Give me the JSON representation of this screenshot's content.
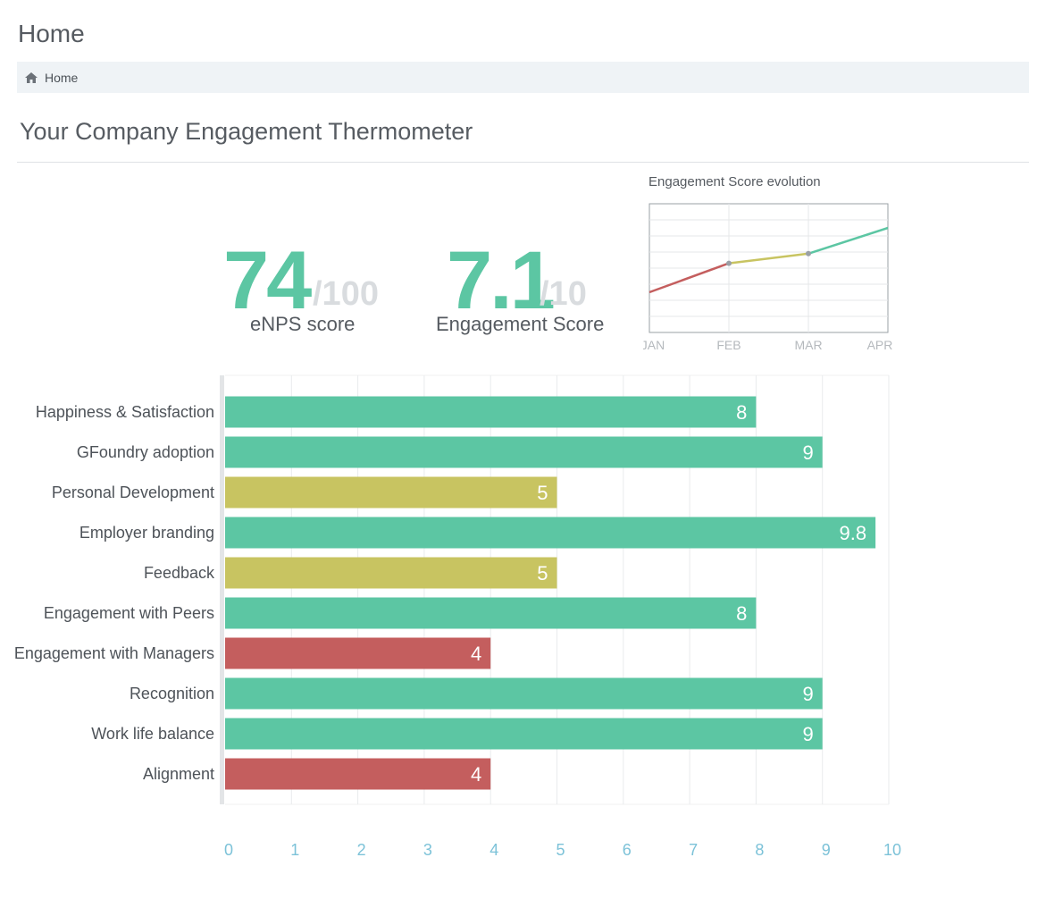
{
  "page": {
    "title": "Home"
  },
  "breadcrumb": {
    "icon": "home-icon",
    "label": "Home"
  },
  "section": {
    "title": "Your Company Engagement Thermometer"
  },
  "kpis": {
    "enps": {
      "value": "74",
      "denominator": "/100",
      "label": "eNPS score"
    },
    "engagement": {
      "value": "7.1",
      "denominator": "/10",
      "label": "Engagement Score"
    }
  },
  "colors": {
    "green": "#5cc6a3",
    "yellow": "#c8c461",
    "red": "#c45e5e",
    "axis_tick": "#7cc2d8"
  },
  "chart_data": [
    {
      "type": "line",
      "title": "Engagement Score evolution",
      "categories": [
        "JAN",
        "FEB",
        "MAR",
        "APR"
      ],
      "series": [
        {
          "values": [
            4.5,
            6.3,
            6.9,
            8.5
          ]
        }
      ],
      "segment_colors": [
        "#c45e5e",
        "#c8c461",
        "#5cc6a3"
      ],
      "ylim": [
        2,
        10
      ],
      "grid": true
    },
    {
      "type": "bar",
      "orientation": "horizontal",
      "categories": [
        "Happiness & Satisfaction",
        "GFoundry adoption",
        "Personal Development",
        "Employer branding",
        "Feedback",
        "Engagement with Peers",
        "Engagement with Managers",
        "Recognition",
        "Work life balance",
        "Alignment"
      ],
      "values": [
        8,
        9,
        5,
        9.8,
        5,
        8,
        4,
        9,
        9,
        4
      ],
      "value_labels": [
        "8",
        "9",
        "5",
        "9.8",
        "5",
        "8",
        "4",
        "9",
        "9",
        "4"
      ],
      "bar_colors": [
        "#5cc6a3",
        "#5cc6a3",
        "#c8c461",
        "#5cc6a3",
        "#c8c461",
        "#5cc6a3",
        "#c45e5e",
        "#5cc6a3",
        "#5cc6a3",
        "#c45e5e"
      ],
      "xlim": [
        0,
        10
      ],
      "xticks": [
        "0",
        "1",
        "2",
        "3",
        "4",
        "5",
        "6",
        "7",
        "8",
        "9",
        "10"
      ],
      "grid": true
    }
  ]
}
